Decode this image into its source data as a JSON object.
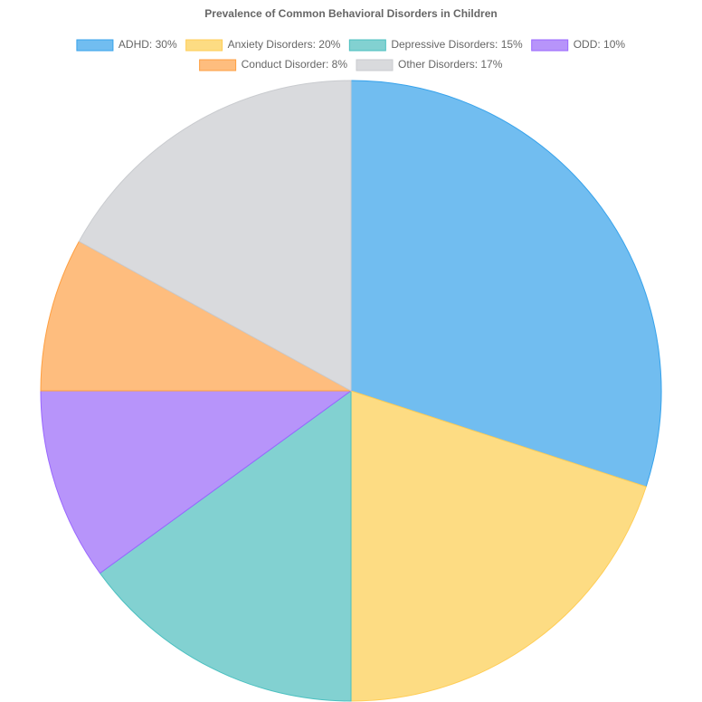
{
  "chart_data": {
    "type": "pie",
    "title": "Prevalence of Common Behavioral Disorders in Children",
    "categories": [
      "ADHD: 30%",
      "Anxiety Disorders: 20%",
      "Depressive Disorders: 15%",
      "ODD: 10%",
      "Conduct Disorder: 8%",
      "Other Disorders: 17%"
    ],
    "values": [
      30,
      20,
      15,
      10,
      8,
      17
    ],
    "colors": [
      "#71bdf0",
      "#fddc83",
      "#82d1d1",
      "#b794fa",
      "#febd7e",
      "#d9dadd"
    ],
    "border_colors": [
      "#36a2eb",
      "#ffcd56",
      "#4bc0c0",
      "#9966ff",
      "#ff9f40",
      "#c9cbcf"
    ],
    "legend": "top"
  }
}
